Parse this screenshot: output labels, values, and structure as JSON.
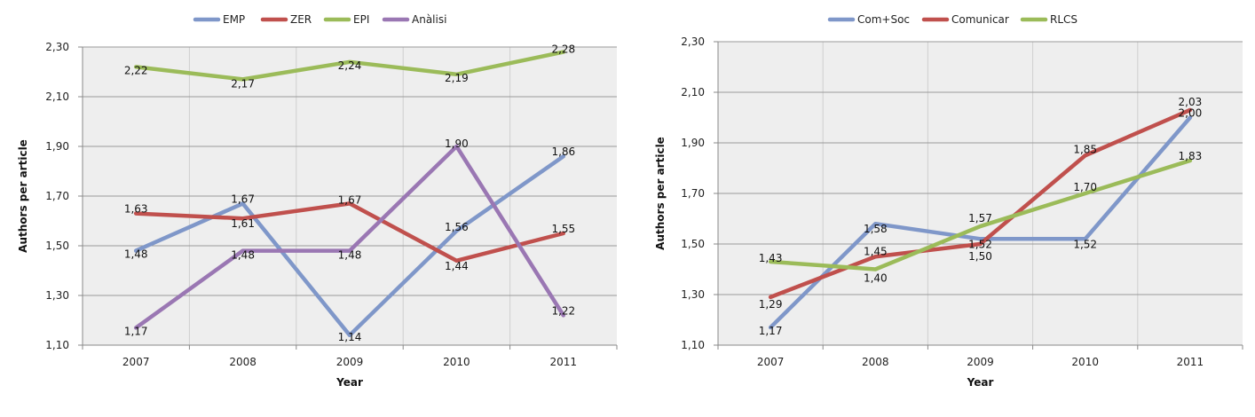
{
  "chart_data": [
    {
      "type": "line",
      "title": "",
      "xlabel": "Year",
      "ylabel": "Authors per article",
      "categories": [
        "2007",
        "2008",
        "2009",
        "2010",
        "2011"
      ],
      "ylim": [
        1.1,
        2.3
      ],
      "yticks": [
        "1,10",
        "1,30",
        "1,50",
        "1,70",
        "1,90",
        "2,10",
        "2,30"
      ],
      "ytick_values": [
        1.1,
        1.3,
        1.5,
        1.7,
        1.9,
        2.1,
        2.3
      ],
      "grid": true,
      "legend_position": "top",
      "series": [
        {
          "name": "EMP",
          "color": "#7f97c9",
          "values": [
            1.48,
            1.67,
            1.14,
            1.56,
            1.86
          ],
          "labels": [
            "1,48",
            "1,67",
            "1,14",
            "1,56",
            "1,86"
          ]
        },
        {
          "name": "ZER",
          "color": "#c0504d",
          "values": [
            1.63,
            1.61,
            1.67,
            1.44,
            1.55
          ],
          "labels": [
            "1,63",
            "1,61",
            "1,67",
            "1,44",
            "1,55"
          ]
        },
        {
          "name": "EPI",
          "color": "#9bbb59",
          "values": [
            2.22,
            2.17,
            2.24,
            2.19,
            2.28
          ],
          "labels": [
            "2,22",
            "2,17",
            "2,24",
            "2,19",
            "2,28"
          ]
        },
        {
          "name": "Anàlisi",
          "color": "#9a77b3",
          "values": [
            1.17,
            1.48,
            1.48,
            1.9,
            1.22
          ],
          "labels": [
            "1,17",
            "1,48",
            "1,48",
            "1,90",
            "1,22"
          ]
        }
      ]
    },
    {
      "type": "line",
      "title": "",
      "xlabel": "Year",
      "ylabel": "Authors per article",
      "categories": [
        "2007",
        "2008",
        "2009",
        "2010",
        "2011"
      ],
      "ylim": [
        1.1,
        2.3
      ],
      "yticks": [
        "1,10",
        "1,30",
        "1,50",
        "1,70",
        "1,90",
        "2,10",
        "2,30"
      ],
      "ytick_values": [
        1.1,
        1.3,
        1.5,
        1.7,
        1.9,
        2.1,
        2.3
      ],
      "grid": true,
      "legend_position": "top",
      "series": [
        {
          "name": "Com+Soc",
          "color": "#7f97c9",
          "values": [
            1.17,
            1.58,
            1.52,
            1.52,
            2.0
          ],
          "labels": [
            "1,17",
            "1,58",
            "1,52",
            "1,52",
            "2,00"
          ]
        },
        {
          "name": "Comunicar",
          "color": "#c0504d",
          "values": [
            1.29,
            1.45,
            1.5,
            1.85,
            2.03
          ],
          "labels": [
            "1,29",
            "1,45",
            "1,50",
            "1,85",
            "2,03"
          ]
        },
        {
          "name": "RLCS",
          "color": "#9bbb59",
          "values": [
            1.43,
            1.4,
            1.57,
            1.7,
            1.83
          ],
          "labels": [
            "1,43",
            "1,40",
            "1,57",
            "1,70",
            "1,83"
          ]
        }
      ]
    }
  ]
}
